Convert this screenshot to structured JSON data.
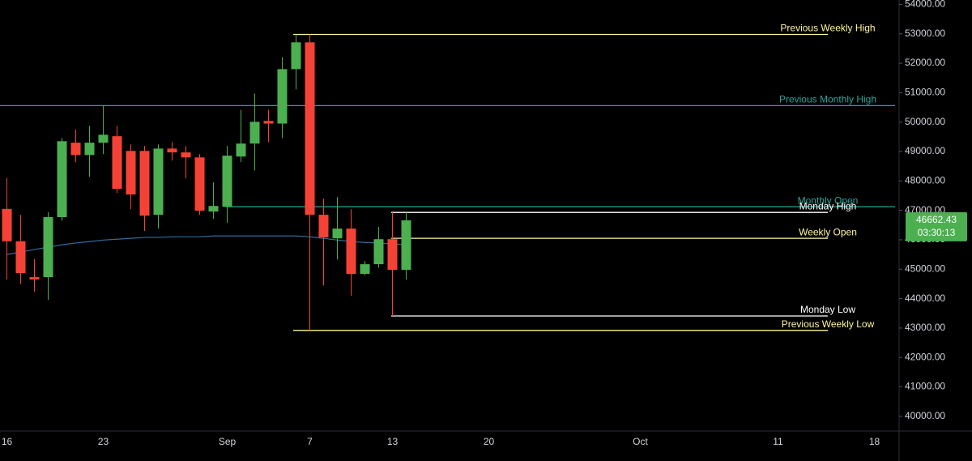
{
  "chart_data": {
    "type": "candlestick",
    "categories": [
      "16",
      null,
      null,
      null,
      null,
      null,
      null,
      "23",
      null,
      null,
      null,
      null,
      null,
      null,
      null,
      null,
      "Sep",
      null,
      null,
      null,
      null,
      null,
      "7",
      null,
      null,
      null,
      null,
      null,
      "13",
      null,
      null,
      null,
      null,
      null,
      null,
      "20",
      null,
      null,
      null,
      null,
      null,
      null,
      null,
      null,
      null,
      null,
      "Oct",
      null,
      null,
      null,
      null,
      null,
      null,
      null,
      null,
      null,
      "11",
      null,
      null,
      null,
      null,
      null,
      null,
      "18",
      null
    ],
    "open": [
      47050,
      45950,
      44730,
      44730,
      46770,
      49300,
      48880,
      49300,
      49520,
      49020,
      49020,
      46850,
      49100,
      48970,
      48800,
      46960,
      47120,
      48830,
      49270,
      50040,
      49950,
      51800,
      52710,
      46850,
      46050,
      46380,
      44840,
      45170,
      46020,
      44980,
      null,
      null,
      null,
      null,
      null,
      null,
      null,
      null,
      null,
      null,
      null,
      null,
      null,
      null,
      null,
      null,
      null,
      null,
      null,
      null,
      null,
      null,
      null,
      null,
      null,
      null,
      null,
      null,
      null,
      null,
      null,
      null,
      null,
      null,
      null
    ],
    "high": [
      48100,
      46850,
      45340,
      46930,
      49460,
      49740,
      49870,
      50560,
      49870,
      49240,
      49190,
      49240,
      49320,
      49190,
      48910,
      47950,
      49190,
      50420,
      50970,
      50420,
      52210,
      52980,
      52980,
      47400,
      47450,
      47040,
      45280,
      46440,
      46930,
      46930,
      null,
      null,
      null,
      null,
      null,
      null,
      null,
      null,
      null,
      null,
      null,
      null,
      null,
      null,
      null,
      null,
      null,
      null,
      null,
      null,
      null,
      null,
      null,
      null,
      null,
      null,
      null,
      null,
      null,
      null,
      null,
      null,
      null,
      null,
      null
    ],
    "low": [
      44650,
      44500,
      44240,
      43960,
      46650,
      48640,
      48140,
      48910,
      47590,
      47040,
      46300,
      46380,
      48690,
      48090,
      46850,
      46710,
      46570,
      48640,
      48360,
      49320,
      49460,
      51110,
      42920,
      44450,
      45330,
      44100,
      44790,
      45060,
      43410,
      44650,
      null,
      null,
      null,
      null,
      null,
      null,
      null,
      null,
      null,
      null,
      null,
      null,
      null,
      null,
      null,
      null,
      null,
      null,
      null,
      null,
      null,
      null,
      null,
      null,
      null,
      null,
      null,
      null,
      null,
      null,
      null,
      null,
      null,
      null,
      null
    ],
    "close": [
      45950,
      44870,
      44650,
      46770,
      49350,
      48880,
      49300,
      49570,
      47730,
      47540,
      46820,
      49100,
      48970,
      48800,
      46990,
      47150,
      48860,
      49270,
      50010,
      49950,
      51800,
      52710,
      46850,
      46080,
      46380,
      44840,
      45170,
      46020,
      44980,
      46662.43,
      null,
      null,
      null,
      null,
      null,
      null,
      null,
      null,
      null,
      null,
      null,
      null,
      null,
      null,
      null,
      null,
      null,
      null,
      null,
      null,
      null,
      null,
      null,
      null,
      null,
      null,
      null,
      null,
      null,
      null,
      null,
      null,
      null,
      null,
      null
    ],
    "ma": [
      45500,
      45580,
      45670,
      45750,
      45830,
      45890,
      45940,
      45990,
      46020,
      46050,
      46080,
      46080,
      46100,
      46100,
      46100,
      46130,
      46130,
      46130,
      46130,
      46130,
      46130,
      46130,
      46100,
      46050,
      45990,
      45940,
      45910,
      45890,
      45860,
      45830,
      null,
      null,
      null,
      null,
      null,
      null,
      null,
      null,
      null,
      null,
      null,
      null,
      null,
      null,
      null,
      null,
      null,
      null,
      null,
      null,
      null,
      null,
      null,
      null,
      null,
      null,
      null,
      null,
      null,
      null,
      null,
      null,
      null,
      null,
      null
    ],
    "up_color": "#4caf50",
    "down_color": "#f44336",
    "ma_color": "#2f6e9e",
    "levels": [
      {
        "name": "Previous Weekly High",
        "value": 52980,
        "color": "#fff59d"
      },
      {
        "name": "Previous Monthly High",
        "value": 50560,
        "color": "#26a69a"
      },
      {
        "name": "Monthly Open",
        "value": 47125,
        "color": "#26a69a"
      },
      {
        "name": "Monday High",
        "value": 46930,
        "color": "#ffffff"
      },
      {
        "name": "Weekly Open",
        "value": 46050,
        "color": "#fff59d"
      },
      {
        "name": "Monday Low",
        "value": 43410,
        "color": "#ffffff"
      },
      {
        "name": "Previous Weekly Low",
        "value": 42920,
        "color": "#fff59d"
      }
    ],
    "last_price": 46662.43,
    "countdown": "03:30:13",
    "ylim": [
      39500,
      54150
    ],
    "yticks": [
      {
        "value": 40000,
        "label": "40000.00"
      },
      {
        "value": 41000,
        "label": "41000.00"
      },
      {
        "value": 42000,
        "label": "42000.00"
      },
      {
        "value": 43000,
        "label": "43000.00"
      },
      {
        "value": 44000,
        "label": "44000.00"
      },
      {
        "value": 45000,
        "label": "45000.00"
      },
      {
        "value": 46000,
        "label": "46000.00"
      },
      {
        "value": 47000,
        "label": "47000.00"
      },
      {
        "value": 48000,
        "label": "48000.00"
      },
      {
        "value": 49000,
        "label": "49000.00"
      },
      {
        "value": 50000,
        "label": "50000.00"
      },
      {
        "value": 51000,
        "label": "51000.00"
      },
      {
        "value": 52000,
        "label": "52000.00"
      },
      {
        "value": 53000,
        "label": "53000.00"
      },
      {
        "value": 54000,
        "label": "54000.00"
      }
    ]
  }
}
